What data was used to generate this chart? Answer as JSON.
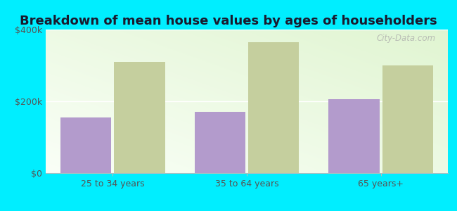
{
  "title": "Breakdown of mean house values by ages of householders",
  "categories": [
    "25 to 34 years",
    "35 to 64 years",
    "65 years+"
  ],
  "st_stephens": [
    155000,
    170000,
    205000
  ],
  "north_carolina": [
    310000,
    365000,
    300000
  ],
  "ylim": [
    0,
    400000
  ],
  "ytick_labels": [
    "$0",
    "$200k",
    "$400k"
  ],
  "ytick_vals": [
    0,
    200000,
    400000
  ],
  "bar_color_stephens": "#b39bcc",
  "bar_color_nc": "#c5cf9e",
  "fig_bg_color": "#00eeff",
  "plot_bg_color_topleft": "#e8f5d8",
  "plot_bg_color_botright": "#f8fff4",
  "watermark": "City-Data.com",
  "title_fontsize": 13,
  "tick_fontsize": 9,
  "legend_fontsize": 9.5
}
